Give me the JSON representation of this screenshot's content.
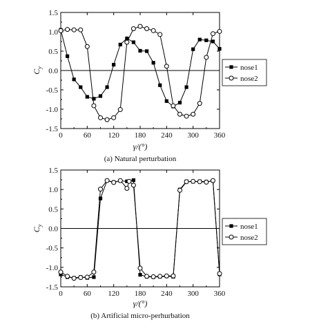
{
  "chart_data": [
    {
      "type": "line",
      "title": "",
      "caption": "(a) Natural perturbation",
      "xlabel": "γ/(°)",
      "ylabel": "C_y",
      "xlim": [
        0,
        360
      ],
      "ylim": [
        -1.5,
        1.5
      ],
      "xticks": [
        0,
        60,
        120,
        180,
        240,
        300,
        360
      ],
      "yticks": [
        -1.5,
        -1.0,
        -0.5,
        0.0,
        0.5,
        1.0,
        1.5
      ],
      "xtick_labels": [
        "0",
        "60",
        "120",
        "180",
        "240",
        "300",
        "360"
      ],
      "ytick_labels": [
        "-1.5",
        "-1.0",
        "-0.5",
        "0.0",
        "0.5",
        "1.0",
        "1.5"
      ],
      "zero_line": true,
      "legend_position": "right",
      "series": [
        {
          "name": "nose1",
          "marker": "filled-square",
          "x": [
            0,
            15,
            30,
            45,
            60,
            75,
            90,
            105,
            120,
            135,
            150,
            165,
            180,
            195,
            210,
            225,
            240,
            255,
            270,
            285,
            300,
            315,
            330,
            345,
            360
          ],
          "y": [
            1.05,
            0.37,
            -0.23,
            -0.43,
            -0.68,
            -0.73,
            -0.66,
            -0.43,
            0.15,
            0.67,
            0.83,
            0.73,
            0.51,
            0.5,
            0.2,
            -0.38,
            -0.79,
            -0.93,
            -0.83,
            -0.43,
            0.55,
            0.8,
            0.78,
            0.75,
            0.56
          ]
        },
        {
          "name": "nose2",
          "marker": "open-circle",
          "x": [
            0,
            15,
            30,
            45,
            60,
            75,
            90,
            105,
            120,
            135,
            150,
            165,
            180,
            195,
            210,
            225,
            240,
            255,
            270,
            285,
            300,
            315,
            330,
            345,
            360
          ],
          "y": [
            1.03,
            1.06,
            1.05,
            1.05,
            0.62,
            -0.91,
            -1.22,
            -1.27,
            -1.22,
            -1.01,
            0.73,
            1.08,
            1.14,
            1.08,
            1.03,
            0.93,
            0.11,
            -0.91,
            -1.13,
            -1.18,
            -1.13,
            -0.85,
            0.34,
            0.95,
            1.01
          ]
        }
      ]
    },
    {
      "type": "line",
      "title": "",
      "caption": "(b) Artificial micro-perhurbation",
      "xlabel": "γ/(°)",
      "ylabel": "C_y",
      "xlim": [
        0,
        360
      ],
      "ylim": [
        -1.5,
        1.5
      ],
      "xticks": [
        0,
        60,
        120,
        180,
        240,
        300,
        360
      ],
      "yticks": [
        -1.5,
        -1.0,
        -0.5,
        0.0,
        0.5,
        1.0,
        1.5
      ],
      "xtick_labels": [
        "0",
        "60",
        "120",
        "180",
        "240",
        "300",
        "360"
      ],
      "ytick_labels": [
        "-1.5",
        "-1.0",
        "-0.5",
        "0.0",
        "0.5",
        "1.0",
        "1.5"
      ],
      "zero_line": true,
      "legend_position": "right",
      "series": [
        {
          "name": "nose1",
          "marker": "filled-square",
          "x": [
            0,
            15,
            30,
            45,
            60,
            75,
            90,
            105,
            120,
            135,
            150,
            165,
            180,
            195,
            210,
            225,
            240,
            255,
            270,
            285,
            300,
            315,
            330,
            345,
            360
          ],
          "y": [
            -1.18,
            -1.25,
            -1.27,
            -1.25,
            -1.27,
            -1.25,
            0.77,
            1.23,
            1.19,
            1.22,
            1.21,
            1.24,
            -1.19,
            -1.24,
            -1.25,
            -1.24,
            -1.23,
            -1.24,
            1.0,
            1.21,
            1.2,
            1.21,
            1.2,
            1.22,
            -1.18
          ]
        },
        {
          "name": "nose2",
          "marker": "open-circle",
          "x": [
            0,
            15,
            30,
            45,
            60,
            75,
            90,
            105,
            120,
            135,
            150,
            155,
            165,
            180,
            195,
            210,
            225,
            240,
            255,
            270,
            285,
            300,
            315,
            330,
            345,
            360
          ],
          "y": [
            -1.12,
            -1.23,
            -1.28,
            -1.26,
            -1.25,
            -1.12,
            1.01,
            1.23,
            1.18,
            1.23,
            1.03,
            1.21,
            1.11,
            -1.02,
            -1.23,
            -1.24,
            -1.23,
            -1.22,
            -1.22,
            0.98,
            1.2,
            1.21,
            1.2,
            1.19,
            1.23,
            -1.16
          ]
        }
      ]
    }
  ]
}
